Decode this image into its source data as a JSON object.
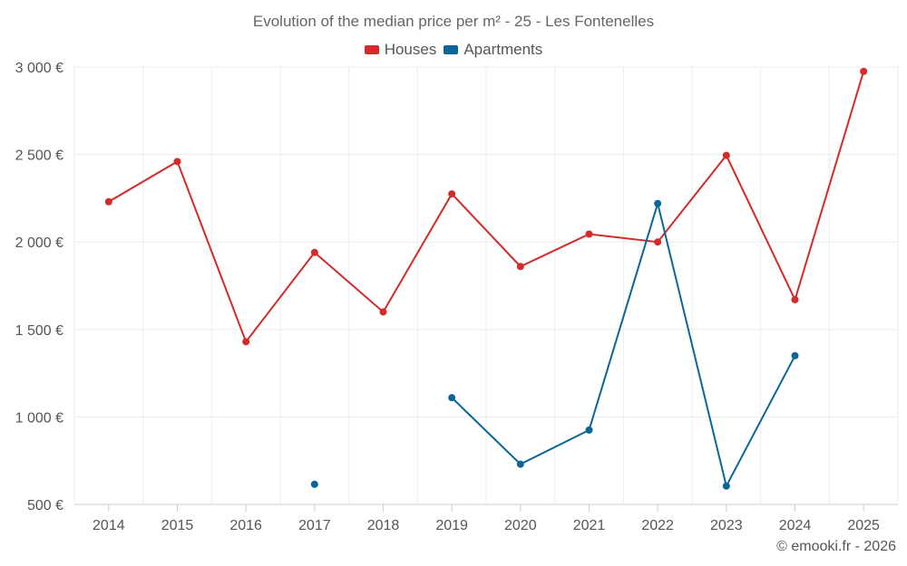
{
  "chart_data": {
    "type": "line",
    "title": "Evolution of the median price per m² - 25 - Les Fontenelles",
    "categories": [
      "2014",
      "2015",
      "2016",
      "2017",
      "2018",
      "2019",
      "2020",
      "2021",
      "2022",
      "2023",
      "2024",
      "2025"
    ],
    "y_ticks": [
      500,
      1000,
      1500,
      2000,
      2500,
      3000
    ],
    "y_tick_labels": [
      "500 €",
      "1 000 €",
      "1 500 €",
      "2 000 €",
      "2 500 €",
      "3 000 €"
    ],
    "ylim": [
      500,
      3000
    ],
    "grid": true,
    "legend_position": "top-center",
    "series": [
      {
        "name": "Houses",
        "color": "#d32a2a",
        "values": [
          2230,
          2460,
          1430,
          1940,
          1600,
          2275,
          1860,
          2045,
          2000,
          2495,
          1670,
          2975
        ]
      },
      {
        "name": "Apartments",
        "color": "#0a6699",
        "values": [
          null,
          null,
          null,
          615,
          null,
          1110,
          730,
          925,
          2220,
          605,
          1350,
          null
        ]
      }
    ]
  },
  "footer": {
    "credit": "© emooki.fr - 2026"
  }
}
